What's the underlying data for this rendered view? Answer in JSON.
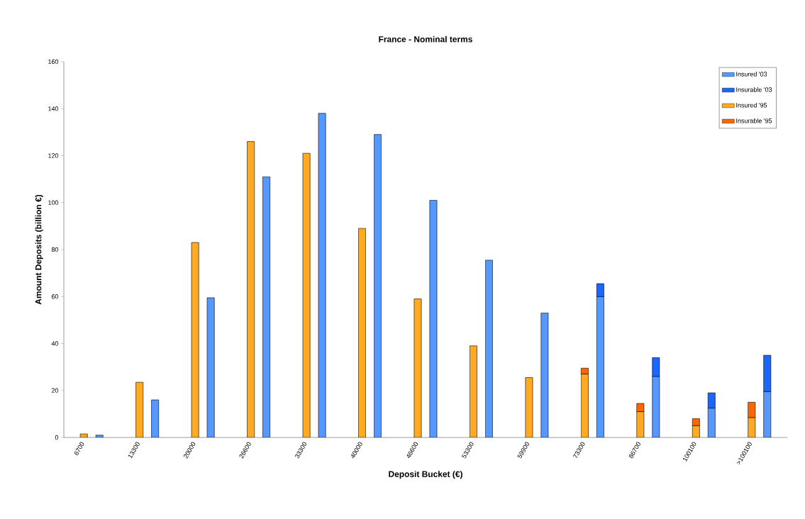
{
  "chart_data": {
    "type": "bar",
    "stacked": true,
    "title": "France - Nominal terms",
    "xlabel": "Deposit Bucket (€)",
    "ylabel": "Amount Deposits (billion €)",
    "categories": [
      "6700",
      null,
      "13300",
      null,
      "20000",
      null,
      "26600",
      null,
      "33300",
      null,
      "40000",
      null,
      "46600",
      null,
      "53300",
      null,
      "59900",
      null,
      "73300",
      null,
      "86700",
      null,
      "100100",
      null,
      ">100100",
      null
    ],
    "series": [
      {
        "name": "Insured '03",
        "color": "#5599ff",
        "values": [
          null,
          1,
          null,
          16,
          null,
          59.5,
          null,
          111,
          null,
          138,
          null,
          129,
          null,
          101,
          null,
          75.5,
          null,
          53,
          null,
          60,
          null,
          26,
          null,
          12.5,
          null,
          19.5
        ]
      },
      {
        "name": "Insurable '03",
        "color": "#1a66ff",
        "values": [
          null,
          null,
          null,
          null,
          null,
          null,
          null,
          null,
          null,
          null,
          null,
          null,
          null,
          null,
          null,
          null,
          null,
          null,
          null,
          5.5,
          null,
          8,
          null,
          6.5,
          null,
          15.5
        ]
      },
      {
        "name": "Insured '95",
        "color": "#ffaa22",
        "values": [
          1.5,
          null,
          23.5,
          null,
          83,
          null,
          126,
          null,
          121,
          null,
          89,
          null,
          59,
          null,
          39,
          null,
          25.5,
          null,
          27,
          null,
          11,
          null,
          5,
          null,
          8.5,
          null
        ]
      },
      {
        "name": "Insurable '95",
        "color": "#ff6600",
        "values": [
          null,
          null,
          null,
          null,
          null,
          null,
          null,
          null,
          null,
          null,
          null,
          null,
          null,
          null,
          null,
          null,
          null,
          null,
          2.5,
          null,
          3.5,
          null,
          3,
          null,
          6.5,
          null
        ]
      }
    ],
    "ylim": [
      0,
      160
    ],
    "yticks": [
      0,
      20,
      40,
      60,
      80,
      100,
      120,
      140,
      160
    ],
    "legend": "top right"
  }
}
